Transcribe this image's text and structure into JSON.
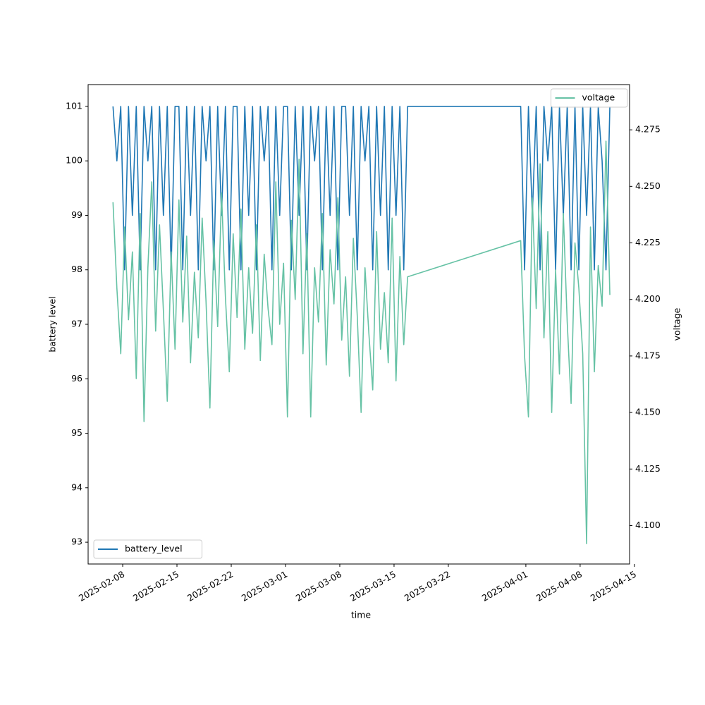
{
  "chart_data": {
    "type": "line",
    "x_label": "time",
    "y_label": "battery level",
    "y2_label": "voltage",
    "x": [
      "2025-02-06 18:00",
      "2025-02-07 06:00",
      "2025-02-07 18:00",
      "2025-02-08 06:00",
      "2025-02-08 18:00",
      "2025-02-09 06:00",
      "2025-02-09 18:00",
      "2025-02-10 06:00",
      "2025-02-10 18:00",
      "2025-02-11 06:00",
      "2025-02-11 18:00",
      "2025-02-12 06:00",
      "2025-02-12 18:00",
      "2025-02-13 06:00",
      "2025-02-13 18:00",
      "2025-02-14 06:00",
      "2025-02-14 18:00",
      "2025-02-15 06:00",
      "2025-02-15 18:00",
      "2025-02-16 06:00",
      "2025-02-16 18:00",
      "2025-02-17 06:00",
      "2025-02-17 18:00",
      "2025-02-18 06:00",
      "2025-02-18 18:00",
      "2025-02-19 06:00",
      "2025-02-19 18:00",
      "2025-02-20 06:00",
      "2025-02-20 18:00",
      "2025-02-21 06:00",
      "2025-02-21 18:00",
      "2025-02-22 06:00",
      "2025-02-22 18:00",
      "2025-02-23 06:00",
      "2025-02-23 18:00",
      "2025-02-24 06:00",
      "2025-02-24 18:00",
      "2025-02-25 06:00",
      "2025-02-25 18:00",
      "2025-02-26 06:00",
      "2025-02-26 18:00",
      "2025-02-27 06:00",
      "2025-02-27 18:00",
      "2025-02-28 06:00",
      "2025-02-28 18:00",
      "2025-03-01 06:00",
      "2025-03-01 18:00",
      "2025-03-02 06:00",
      "2025-03-02 18:00",
      "2025-03-03 06:00",
      "2025-03-03 18:00",
      "2025-03-04 06:00",
      "2025-03-04 18:00",
      "2025-03-05 06:00",
      "2025-03-05 18:00",
      "2025-03-06 06:00",
      "2025-03-06 18:00",
      "2025-03-07 06:00",
      "2025-03-07 18:00",
      "2025-03-08 06:00",
      "2025-03-08 18:00",
      "2025-03-09 06:00",
      "2025-03-09 18:00",
      "2025-03-10 06:00",
      "2025-03-10 18:00",
      "2025-03-11 06:00",
      "2025-03-11 18:00",
      "2025-03-12 06:00",
      "2025-03-12 18:00",
      "2025-03-13 06:00",
      "2025-03-13 18:00",
      "2025-03-14 06:00",
      "2025-03-14 18:00",
      "2025-03-15 06:00",
      "2025-03-15 18:00",
      "2025-03-16 06:00",
      "2025-03-16 18:00",
      "2025-03-31 08:00",
      "2025-03-31 20:00",
      "2025-04-01 08:00",
      "2025-04-01 20:00",
      "2025-04-02 08:00",
      "2025-04-02 20:00",
      "2025-04-03 08:00",
      "2025-04-03 20:00",
      "2025-04-04 08:00",
      "2025-04-04 20:00",
      "2025-04-05 08:00",
      "2025-04-05 20:00",
      "2025-04-06 08:00",
      "2025-04-06 20:00",
      "2025-04-07 08:00",
      "2025-04-07 20:00",
      "2025-04-08 08:00",
      "2025-04-08 20:00",
      "2025-04-09 08:00",
      "2025-04-09 20:00",
      "2025-04-10 08:00",
      "2025-04-10 20:00",
      "2025-04-11 08:00",
      "2025-04-11 20:00"
    ],
    "series": [
      {
        "name": "battery_level",
        "color": "#1f77b4",
        "axis": "y",
        "values": [
          101,
          100,
          101,
          98,
          101,
          99,
          101,
          98,
          101,
          100,
          101,
          98,
          101,
          99,
          101,
          98,
          101,
          101,
          98,
          101,
          99,
          101,
          98,
          101,
          100,
          101,
          98,
          101,
          99,
          101,
          98,
          101,
          101,
          98,
          101,
          99,
          101,
          98,
          101,
          100,
          101,
          98,
          101,
          99,
          101,
          101,
          98,
          101,
          99,
          101,
          98,
          101,
          100,
          101,
          98,
          101,
          99,
          101,
          98,
          101,
          101,
          99,
          101,
          98,
          101,
          100,
          101,
          98,
          101,
          99,
          101,
          98,
          101,
          99,
          101,
          98,
          101,
          101,
          98,
          101,
          99,
          101,
          98,
          101,
          100,
          101,
          98,
          101,
          99,
          101,
          98,
          101,
          98,
          101,
          99,
          101,
          98,
          101,
          100,
          98,
          101
        ]
      },
      {
        "name": "voltage",
        "color": "#66c2a5",
        "axis": "y2",
        "values": [
          4.243,
          4.205,
          4.176,
          4.232,
          4.191,
          4.221,
          4.165,
          4.238,
          4.146,
          4.214,
          4.252,
          4.186,
          4.233,
          4.195,
          4.155,
          4.221,
          4.178,
          4.244,
          4.19,
          4.228,
          4.172,
          4.212,
          4.183,
          4.236,
          4.199,
          4.152,
          4.226,
          4.188,
          4.247,
          4.201,
          4.168,
          4.229,
          4.192,
          4.24,
          4.178,
          4.214,
          4.185,
          4.233,
          4.173,
          4.22,
          4.196,
          4.18,
          4.252,
          4.189,
          4.216,
          4.148,
          4.235,
          4.2,
          4.262,
          4.176,
          4.229,
          4.148,
          4.214,
          4.19,
          4.238,
          4.171,
          4.222,
          4.198,
          4.245,
          4.182,
          4.21,
          4.166,
          4.227,
          4.193,
          4.15,
          4.214,
          4.185,
          4.16,
          4.23,
          4.178,
          4.203,
          4.172,
          4.236,
          4.164,
          4.219,
          4.18,
          4.21,
          4.226,
          4.175,
          4.148,
          4.245,
          4.196,
          4.26,
          4.183,
          4.23,
          4.15,
          4.213,
          4.167,
          4.238,
          4.19,
          4.154,
          4.225,
          4.205,
          4.176,
          4.092,
          4.232,
          4.168,
          4.215,
          4.197,
          4.27,
          4.202
        ]
      }
    ],
    "xlim": [
      "2025-02-03 13:00",
      "2025-04-14 09:00"
    ],
    "xticks": [
      "2025-02-08",
      "2025-02-15",
      "2025-02-22",
      "2025-03-01",
      "2025-03-08",
      "2025-03-15",
      "2025-03-22",
      "2025-04-01",
      "2025-04-08",
      "2025-04-15"
    ],
    "ylim": [
      92.6,
      101.4
    ],
    "yticks": [
      93,
      94,
      95,
      96,
      97,
      98,
      99,
      100,
      101
    ],
    "y2lim": [
      4.083,
      4.295
    ],
    "y2ticks": [
      {
        "value": 4.1,
        "label": "4.100"
      },
      4.125,
      {
        "value": 4.15,
        "label": "4.150"
      },
      4.175,
      {
        "value": 4.2,
        "label": "4.200"
      },
      4.225,
      {
        "value": 4.25,
        "label": "4.250"
      },
      4.275
    ],
    "legend": {
      "battery_level": "lower left",
      "voltage": "upper right"
    }
  }
}
